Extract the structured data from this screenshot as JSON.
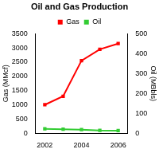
{
  "chart_data": {
    "type": "line",
    "title": "Oil and Gas Production",
    "categories": [
      "2002",
      null,
      "2004",
      null,
      "2006"
    ],
    "series": [
      {
        "name": "Gas",
        "color": "#ff0000",
        "marker": "square",
        "values": [
          1000,
          1300,
          2550,
          2950,
          3150
        ]
      },
      {
        "name": "Oil",
        "color": "#33cc33",
        "marker": "square",
        "axis": "y2",
        "values": [
          22,
          20,
          18,
          14,
          13
        ]
      }
    ],
    "ylabel": "Gas (MMcf)",
    "y2label": "Oil (MBbls)",
    "ylim": [
      0,
      3500
    ],
    "yticks": [
      0,
      500,
      1000,
      1500,
      2000,
      2500,
      3000,
      3500
    ],
    "y2lim": [
      0,
      500
    ],
    "y2ticks": [
      0,
      100,
      200,
      300,
      400,
      500
    ],
    "grid": false,
    "legend": "top"
  }
}
